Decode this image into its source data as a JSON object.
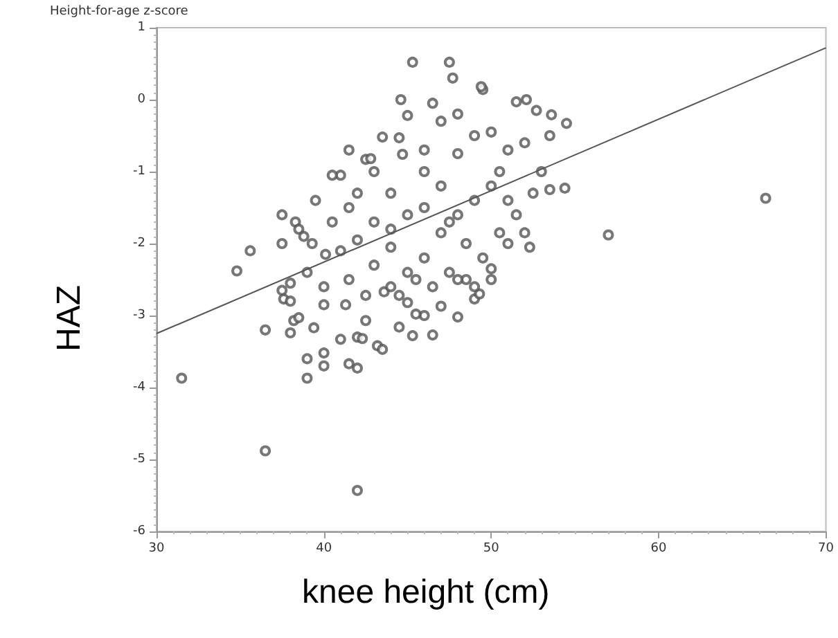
{
  "chart_data": {
    "type": "scatter",
    "xlabel": "knee height (cm)",
    "ylabel": "HAZ",
    "annotations": [
      "Height-for-age z-score"
    ],
    "xlim": [
      30,
      70
    ],
    "xticks": [
      30,
      40,
      50,
      60,
      70
    ],
    "ylim": [
      -6,
      1
    ],
    "yticks": [
      -6,
      -5,
      -4,
      -3,
      -2,
      -1,
      0,
      1
    ],
    "grid": false,
    "series": [
      {
        "type": "scatter",
        "marker": "circle",
        "color": "#555555",
        "x": [
          31.5,
          36.5,
          42,
          66.4,
          57,
          54.5,
          36.5,
          39,
          39,
          40,
          40,
          41.5,
          42,
          43.2,
          43.5,
          34.8,
          35.6,
          37.5,
          37.5,
          45.3,
          47.5,
          47.7,
          49.5,
          49.4,
          44.6,
          45,
          46.5,
          52.1,
          51.5,
          52.7,
          53.6,
          41.5,
          43.5,
          44.5,
          42.5,
          42.8,
          44.7,
          41,
          40.5,
          39.5,
          38.3,
          38.5,
          38.8,
          39.3,
          40.1,
          39,
          38,
          37.5,
          37.6,
          38,
          38.2,
          38.5,
          38,
          39.4,
          41,
          42,
          42.3,
          44.5,
          45.3,
          46.5,
          48,
          47,
          49,
          49.3,
          50,
          46,
          45.5,
          45,
          44.5,
          42.5,
          41.3,
          40,
          40,
          42.5,
          43.6,
          48.5,
          48,
          51,
          51.5,
          52.5,
          53,
          53.5,
          52,
          51,
          50,
          49,
          48,
          47,
          46,
          45,
          44,
          43,
          42,
          41,
          41.5,
          43,
          44,
          45,
          46,
          47,
          48,
          49,
          50,
          50.5,
          49.5,
          48.5,
          47.5,
          46.5,
          45.5,
          44,
          43,
          42,
          40.5,
          41.5,
          46,
          47,
          48,
          44,
          46,
          47.5,
          50.5,
          51,
          52,
          53.5,
          54.4,
          52.3,
          50,
          49
        ],
        "values": [
          -3.87,
          -4.88,
          -5.43,
          -1.37,
          -1.88,
          -0.33,
          -3.2,
          -3.87,
          -3.6,
          -3.7,
          -3.52,
          -3.67,
          -3.73,
          -3.42,
          -3.47,
          -2.38,
          -2.1,
          -2.0,
          -1.6,
          0.52,
          0.52,
          0.3,
          0.14,
          0.18,
          0,
          -0.22,
          -0.05,
          0,
          -0.03,
          -0.15,
          -0.21,
          -0.7,
          -0.52,
          -0.53,
          -0.83,
          -0.82,
          -0.76,
          -1.05,
          -1.05,
          -1.4,
          -1.7,
          -1.8,
          -1.9,
          -2.0,
          -2.15,
          -2.4,
          -2.55,
          -2.65,
          -2.77,
          -2.8,
          -3.07,
          -3.03,
          -3.24,
          -3.17,
          -3.33,
          -3.3,
          -3.32,
          -3.16,
          -3.28,
          -3.27,
          -3.02,
          -2.87,
          -2.77,
          -2.7,
          -2.5,
          -3.0,
          -2.98,
          -2.82,
          -2.72,
          -2.72,
          -2.85,
          -2.85,
          -2.6,
          -3.07,
          -2.67,
          -2.5,
          -2.5,
          -2.0,
          -1.6,
          -1.3,
          -1.0,
          -0.5,
          -0.6,
          -0.7,
          -0.45,
          -0.5,
          -0.75,
          -1.2,
          -1.5,
          -1.6,
          -1.3,
          -1.7,
          -1.95,
          -2.1,
          -2.5,
          -2.3,
          -2.05,
          -2.4,
          -2.2,
          -1.85,
          -1.6,
          -1.4,
          -1.2,
          -1.85,
          -2.2,
          -2.0,
          -2.4,
          -2.6,
          -2.5,
          -2.6,
          -1.0,
          -1.3,
          -1.7,
          -1.5,
          -0.7,
          -0.3,
          -0.2,
          -1.8,
          -1.0,
          -1.7,
          -1.0,
          -1.4,
          -1.85,
          -1.25,
          -1.23,
          -2.05,
          -2.35,
          -2.6
        ]
      },
      {
        "type": "line",
        "marker": "none",
        "line_style": "solid",
        "color": "#555555",
        "x": [
          30,
          70
        ],
        "values": [
          -3.25,
          0.72
        ]
      }
    ]
  }
}
